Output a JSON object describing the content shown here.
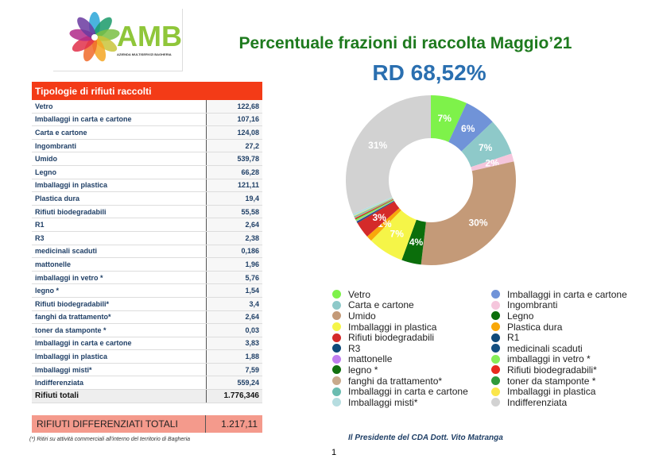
{
  "logo": {
    "text": "AMB",
    "subtitle": "AZIENDA MULTISERVIZI BAGHERIA"
  },
  "title": "Percentuale frazioni di raccolta  Maggio’21",
  "rd": "RD 68,52%",
  "table": {
    "header": "Tipologie di rifiuti raccolti",
    "rows": [
      [
        "Vetro",
        "122,68"
      ],
      [
        "Imballaggi in carta e cartone",
        "107,16"
      ],
      [
        "Carta e cartone",
        "124,08"
      ],
      [
        "Ingombranti",
        "27,2"
      ],
      [
        "Umido",
        "539,78"
      ],
      [
        "Legno",
        "66,28"
      ],
      [
        "Imballaggi in plastica",
        "121,11"
      ],
      [
        "Plastica dura",
        "19,4"
      ],
      [
        "Rifiuti biodegradabili",
        "55,58"
      ],
      [
        "R1",
        "2,64"
      ],
      [
        "R3",
        "2,38"
      ],
      [
        "medicinali scaduti",
        "0,186"
      ],
      [
        "mattonelle",
        "1,96"
      ],
      [
        "imballaggi in vetro *",
        "5,76"
      ],
      [
        "legno *",
        "1,54"
      ],
      [
        "Rifiuti biodegradabili*",
        "3,4"
      ],
      [
        "fanghi da trattamento*",
        "2,64"
      ],
      [
        "toner da stamponte *",
        "0,03"
      ],
      [
        "Imballaggi in carta e cartone",
        "3,83"
      ],
      [
        "Imballaggi in plastica",
        "1,88"
      ],
      [
        "Imballaggi misti*",
        "7,59"
      ],
      [
        "Indifferenziata",
        "559,24"
      ]
    ],
    "total_label": "Rifiuti totali",
    "total_value": "1.776,346"
  },
  "rd_total": {
    "label": "RIFIUTI DIFFERENZIATI TOTALI",
    "value": "1.217,11"
  },
  "footnote": "(*) Ritiri su attività commerciali all'interno del territorio di Bagheria",
  "signature": "Il Presidente del CDA Dott. Vito Matranga",
  "page_number": "1",
  "chart_data": {
    "type": "pie",
    "donut": true,
    "categories": [
      "Vetro",
      "Imballaggi in carta e cartone",
      "Carta e cartone",
      "Ingombranti",
      "Umido",
      "Legno",
      "Imballaggi in plastica",
      "Plastica dura",
      "Rifiuti biodegradabili",
      "R1",
      "R3",
      "medicinali scaduti",
      "mattonelle",
      "imballaggi in vetro *",
      "legno *",
      "Rifiuti biodegradabili*",
      "fanghi da trattamento*",
      "toner da stamponte *",
      "Imballaggi in carta e cartone",
      "Imballaggi in plastica",
      "Imballaggi misti*",
      "Indifferenziata"
    ],
    "values": [
      122.68,
      107.16,
      124.08,
      27.2,
      539.78,
      66.28,
      121.11,
      19.4,
      55.58,
      2.64,
      2.38,
      0.186,
      1.96,
      5.76,
      1.54,
      3.4,
      2.64,
      0.03,
      3.83,
      1.88,
      7.59,
      559.24
    ],
    "labels": [
      "7%",
      "6%",
      "7%",
      "2%",
      "30%",
      "4%",
      "7%",
      "1%",
      "3%",
      "",
      "",
      "",
      "",
      "",
      "",
      "",
      "",
      "",
      "",
      "",
      "",
      "31%"
    ],
    "colors": [
      "#7ef24a",
      "#7093d8",
      "#8ec9c9",
      "#f5c6dc",
      "#c49a78",
      "#0b6e0b",
      "#f5f548",
      "#f9a80a",
      "#d42a2a",
      "#0f4a7a",
      "#0f4a7a",
      "#134f80",
      "#c07ef0",
      "#86ee58",
      "#12700f",
      "#e82a1e",
      "#c8aa8c",
      "#2e9a3a",
      "#6abcb0",
      "#fbe64a",
      "#b6dde0",
      "#d2d2d2"
    ],
    "legend": "bottom, two columns"
  }
}
